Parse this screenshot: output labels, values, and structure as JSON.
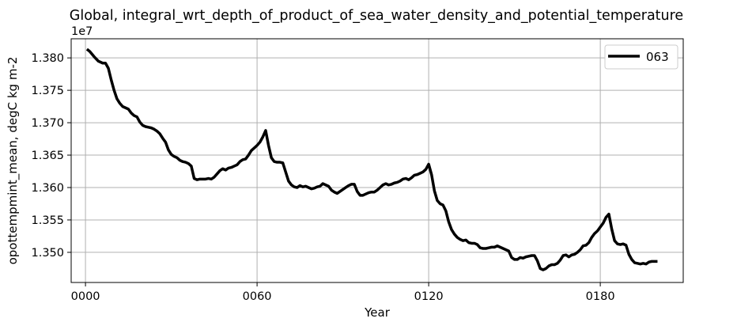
{
  "chart_data": {
    "type": "line",
    "title": "Global, integral_wrt_depth_of_product_of_sea_water_density_and_potential_temperature",
    "xlabel": "Year",
    "ylabel": "opottempmint_mean, degC kg m-2",
    "y_offset_label": "1e7",
    "xlim": [
      -5,
      209
    ],
    "ylim": [
      13.4535,
      13.8295
    ],
    "x_ticks": [
      0,
      60,
      120,
      180
    ],
    "x_tick_labels": [
      "0000",
      "0060",
      "0120",
      "0180"
    ],
    "y_ticks": [
      13.5,
      13.55,
      13.6,
      13.65,
      13.7,
      13.75,
      13.8
    ],
    "y_tick_labels": [
      "1.350",
      "1.355",
      "1.360",
      "1.365",
      "1.370",
      "1.375",
      "1.380"
    ],
    "grid": true,
    "legend_position": "top-right",
    "series": [
      {
        "name": "063",
        "color": "#000000",
        "x": [
          0.5,
          1.5,
          3,
          4.5,
          6,
          7,
          8,
          9,
          10,
          11,
          12,
          13,
          14,
          15,
          16,
          17,
          18,
          19,
          20,
          21,
          22,
          23,
          24,
          25,
          26,
          27,
          28,
          29,
          30,
          31,
          32,
          33,
          34,
          35,
          36,
          37,
          38,
          39,
          40,
          41,
          42,
          43,
          44,
          45,
          46,
          47,
          48,
          49,
          50,
          51,
          52,
          53,
          54,
          55,
          56,
          57,
          58,
          59,
          60,
          61,
          62,
          63,
          64,
          65,
          66,
          67,
          68,
          69,
          70,
          71,
          72,
          73,
          74,
          75,
          76,
          77,
          78,
          79,
          80,
          81,
          82,
          83,
          84,
          85,
          86,
          87,
          88,
          89,
          90,
          91,
          92,
          93,
          94,
          95,
          96,
          97,
          98,
          99,
          100,
          101,
          102,
          103,
          104,
          105,
          106,
          107,
          108,
          109,
          110,
          111,
          112,
          113,
          114,
          115,
          116,
          117,
          118,
          119,
          120,
          121,
          122,
          123,
          124,
          125,
          126,
          127,
          128,
          129,
          130,
          131,
          132,
          133,
          134,
          135,
          136,
          137,
          138,
          139,
          140,
          141,
          142,
          143,
          144,
          145,
          146,
          147,
          148,
          149,
          150,
          151,
          152,
          153,
          154,
          155,
          156,
          157,
          158,
          159,
          160,
          161,
          162,
          163,
          164,
          165,
          166,
          167,
          168,
          169,
          170,
          171,
          172,
          173,
          174,
          175,
          176,
          177,
          178,
          179,
          180,
          181,
          182,
          183,
          184,
          185,
          186,
          187,
          188,
          189,
          190,
          191,
          192,
          193,
          194,
          195,
          196,
          197,
          198,
          199,
          200
        ],
        "values": [
          13.8135,
          13.81,
          13.802,
          13.795,
          13.792,
          13.792,
          13.784,
          13.766,
          13.75,
          13.737,
          13.73,
          13.725,
          13.723,
          13.721,
          13.715,
          13.711,
          13.709,
          13.701,
          13.696,
          13.694,
          13.693,
          13.692,
          13.69,
          13.687,
          13.683,
          13.676,
          13.67,
          13.658,
          13.651,
          13.648,
          13.646,
          13.642,
          13.64,
          13.639,
          13.637,
          13.633,
          13.614,
          13.612,
          13.613,
          13.613,
          13.613,
          13.614,
          13.613,
          13.616,
          13.621,
          13.626,
          13.629,
          13.627,
          13.63,
          13.631,
          13.633,
          13.635,
          13.64,
          13.643,
          13.644,
          13.65,
          13.657,
          13.661,
          13.665,
          13.67,
          13.678,
          13.688,
          13.665,
          13.646,
          13.64,
          13.639,
          13.639,
          13.638,
          13.624,
          13.61,
          13.604,
          13.601,
          13.6,
          13.603,
          13.601,
          13.602,
          13.6,
          13.598,
          13.599,
          13.601,
          13.602,
          13.606,
          13.604,
          13.602,
          13.596,
          13.593,
          13.591,
          13.594,
          13.597,
          13.6,
          13.603,
          13.605,
          13.605,
          13.594,
          13.588,
          13.588,
          13.59,
          13.592,
          13.593,
          13.593,
          13.596,
          13.6,
          13.604,
          13.606,
          13.604,
          13.605,
          13.607,
          13.608,
          13.61,
          13.613,
          13.614,
          13.612,
          13.615,
          13.619,
          13.62,
          13.622,
          13.624,
          13.628,
          13.636,
          13.62,
          13.595,
          13.58,
          13.575,
          13.573,
          13.564,
          13.547,
          13.535,
          13.528,
          13.523,
          13.52,
          13.518,
          13.519,
          13.515,
          13.514,
          13.514,
          13.512,
          13.507,
          13.506,
          13.506,
          13.507,
          13.508,
          13.508,
          13.51,
          13.508,
          13.506,
          13.504,
          13.502,
          13.492,
          13.489,
          13.489,
          13.492,
          13.491,
          13.493,
          13.494,
          13.495,
          13.495,
          13.487,
          13.475,
          13.473,
          13.475,
          13.479,
          13.481,
          13.481,
          13.483,
          13.488,
          13.495,
          13.496,
          13.493,
          13.496,
          13.497,
          13.5,
          13.504,
          13.51,
          13.511,
          13.515,
          13.523,
          13.529,
          13.533,
          13.539,
          13.545,
          13.554,
          13.559,
          13.536,
          13.518,
          13.513,
          13.512,
          13.513,
          13.511,
          13.497,
          13.489,
          13.484,
          13.483,
          13.482,
          13.483,
          13.482,
          13.485,
          13.486,
          13.486,
          13.486
        ]
      }
    ]
  }
}
